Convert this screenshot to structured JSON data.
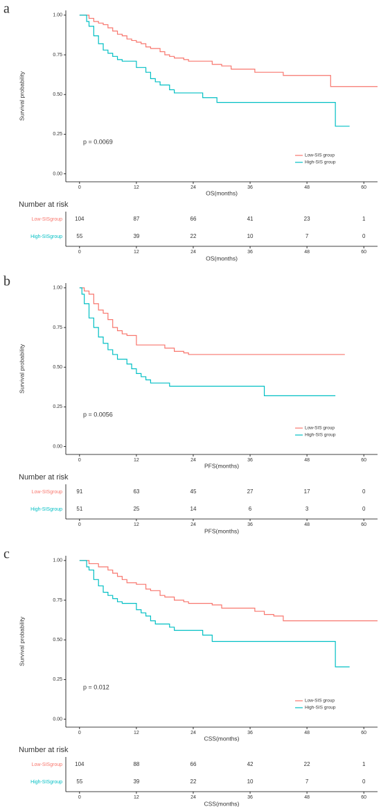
{
  "chart_data": [
    {
      "type": "step",
      "panel": "a",
      "ylabel": "Survival probability",
      "xlabel": "OS(months)",
      "annotation": "p = 0.0069",
      "xlim": [
        -2.9,
        62.9
      ],
      "ylim": [
        -0.05,
        1.03
      ],
      "xticks": [
        0,
        12,
        24,
        36,
        48,
        60
      ],
      "yticks": [
        {
          "value": 0,
          "label": "0.00"
        },
        {
          "value": 0.25,
          "label": "0.25"
        },
        {
          "value": 0.5,
          "label": "0.50"
        },
        {
          "value": 0.75,
          "label": "0.75"
        },
        {
          "value": 1,
          "label": "1.00"
        }
      ],
      "legend": "bottom-right",
      "series": [
        {
          "name": "Low-SIS group",
          "color": "#f8766d",
          "x": [
            0,
            2,
            3,
            4,
            5,
            6,
            7,
            8,
            9,
            10,
            11,
            12,
            13,
            14,
            15,
            17,
            18,
            19,
            20,
            22,
            23,
            28,
            30,
            32,
            37,
            43,
            53,
            62.9
          ],
          "values": [
            1,
            0.98,
            0.96,
            0.95,
            0.94,
            0.92,
            0.9,
            0.88,
            0.87,
            0.85,
            0.84,
            0.83,
            0.82,
            0.8,
            0.79,
            0.77,
            0.75,
            0.74,
            0.73,
            0.72,
            0.71,
            0.69,
            0.68,
            0.66,
            0.64,
            0.62,
            0.55,
            0.55
          ]
        },
        {
          "name": "High-SIS group",
          "color": "#00bfc4",
          "x": [
            0,
            1.5,
            2,
            3,
            4,
            5,
            6,
            7,
            8,
            9,
            12,
            14,
            15,
            16,
            17,
            19,
            20,
            26,
            29,
            54,
            57
          ],
          "values": [
            1,
            0.96,
            0.93,
            0.87,
            0.82,
            0.78,
            0.76,
            0.74,
            0.72,
            0.71,
            0.67,
            0.64,
            0.6,
            0.58,
            0.56,
            0.53,
            0.51,
            0.48,
            0.45,
            0.3,
            0.3
          ]
        }
      ],
      "risk_table": {
        "title": "Number at risk",
        "rows": [
          {
            "name": "Low-SISgroup",
            "color": "#f8766d",
            "counts": [
              104,
              87,
              66,
              41,
              23,
              1
            ]
          },
          {
            "name": "High-SISgroup",
            "color": "#00bfc4",
            "counts": [
              55,
              39,
              22,
              10,
              7,
              0
            ]
          }
        ]
      }
    },
    {
      "type": "step",
      "panel": "b",
      "ylabel": "Survival probability",
      "xlabel": "PFS(months)",
      "annotation": "p = 0.0056",
      "xlim": [
        -2.9,
        62.9
      ],
      "ylim": [
        -0.05,
        1.03
      ],
      "xticks": [
        0,
        12,
        24,
        36,
        48,
        60
      ],
      "yticks": [
        {
          "value": 0,
          "label": "0.00"
        },
        {
          "value": 0.25,
          "label": "0.25"
        },
        {
          "value": 0.5,
          "label": "0.50"
        },
        {
          "value": 0.75,
          "label": "0.75"
        },
        {
          "value": 1,
          "label": "1.00"
        }
      ],
      "legend": "bottom-right",
      "series": [
        {
          "name": "Low-SIS group",
          "color": "#f8766d",
          "x": [
            0,
            1,
            2,
            3,
            4,
            5,
            6,
            7,
            8,
            9,
            10,
            12,
            18,
            20,
            22,
            23,
            56
          ],
          "values": [
            1,
            0.98,
            0.96,
            0.9,
            0.86,
            0.84,
            0.8,
            0.75,
            0.73,
            0.71,
            0.7,
            0.64,
            0.62,
            0.6,
            0.59,
            0.58,
            0.58
          ]
        },
        {
          "name": "High-SIS group",
          "color": "#00bfc4",
          "x": [
            0,
            0.5,
            1,
            2,
            3,
            4,
            5,
            6,
            7,
            8,
            10,
            11,
            12,
            13,
            14,
            15,
            19,
            39,
            54
          ],
          "values": [
            1,
            0.96,
            0.9,
            0.81,
            0.75,
            0.69,
            0.65,
            0.61,
            0.58,
            0.55,
            0.52,
            0.49,
            0.46,
            0.44,
            0.42,
            0.4,
            0.38,
            0.32,
            0.32
          ]
        }
      ],
      "risk_table": {
        "title": "Number at risk",
        "rows": [
          {
            "name": "Low-SISgroup",
            "color": "#f8766d",
            "counts": [
              91,
              63,
              45,
              27,
              17,
              0
            ]
          },
          {
            "name": "High-SISgroup",
            "color": "#00bfc4",
            "counts": [
              51,
              25,
              14,
              6,
              3,
              0
            ]
          }
        ]
      }
    },
    {
      "type": "step",
      "panel": "c",
      "ylabel": "Survival probability",
      "xlabel": "CSS(months)",
      "annotation": "p = 0.012",
      "xlim": [
        -2.9,
        62.9
      ],
      "ylim": [
        -0.05,
        1.03
      ],
      "xticks": [
        0,
        12,
        24,
        36,
        48,
        60
      ],
      "yticks": [
        {
          "value": 0,
          "label": "0.00"
        },
        {
          "value": 0.25,
          "label": "0.25"
        },
        {
          "value": 0.5,
          "label": "0.50"
        },
        {
          "value": 0.75,
          "label": "0.75"
        },
        {
          "value": 1,
          "label": "1.00"
        }
      ],
      "legend": "bottom-right",
      "series": [
        {
          "name": "Low-SIS group",
          "color": "#f8766d",
          "x": [
            0,
            2,
            4,
            6,
            7,
            8,
            9,
            10,
            12,
            14,
            15,
            17,
            18,
            20,
            22,
            23,
            28,
            30,
            37,
            39,
            41,
            43,
            62.9
          ],
          "values": [
            1,
            0.98,
            0.96,
            0.94,
            0.92,
            0.9,
            0.88,
            0.86,
            0.85,
            0.82,
            0.81,
            0.78,
            0.77,
            0.75,
            0.74,
            0.73,
            0.72,
            0.7,
            0.68,
            0.66,
            0.65,
            0.62,
            0.62
          ]
        },
        {
          "name": "High-SIS group",
          "color": "#00bfc4",
          "x": [
            0,
            1.5,
            2,
            3,
            4,
            5,
            6,
            7,
            8,
            9,
            12,
            13,
            14,
            15,
            16,
            19,
            20,
            26,
            28,
            54,
            57
          ],
          "values": [
            1,
            0.96,
            0.94,
            0.88,
            0.84,
            0.8,
            0.78,
            0.76,
            0.74,
            0.73,
            0.69,
            0.67,
            0.65,
            0.62,
            0.6,
            0.58,
            0.56,
            0.53,
            0.49,
            0.33,
            0.33
          ]
        }
      ],
      "risk_table": {
        "title": "Number at risk",
        "rows": [
          {
            "name": "Low-SISgroup",
            "color": "#f8766d",
            "counts": [
              104,
              88,
              66,
              42,
              22,
              1
            ]
          },
          {
            "name": "High-SISgroup",
            "color": "#00bfc4",
            "counts": [
              55,
              39,
              22,
              10,
              7,
              0
            ]
          }
        ]
      }
    }
  ]
}
